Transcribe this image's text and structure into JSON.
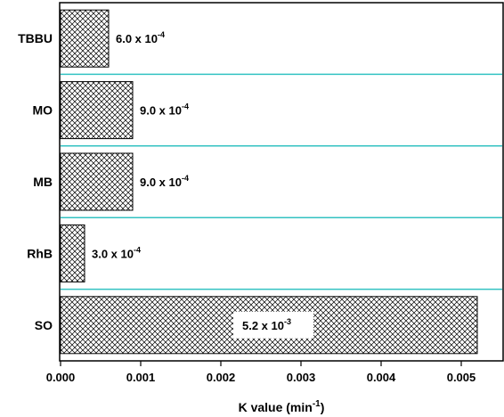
{
  "chart_data": {
    "type": "bar",
    "orientation": "horizontal",
    "categories": [
      "TBBU",
      "MO",
      "MB",
      "RhB",
      "SO"
    ],
    "values": [
      0.0006,
      0.0009,
      0.0009,
      0.0003,
      0.0052
    ],
    "data_labels": [
      {
        "mantissa": "6.0 x 10",
        "exponent": "-4"
      },
      {
        "mantissa": "9.0 x 10",
        "exponent": "-4"
      },
      {
        "mantissa": "9.0 x 10",
        "exponent": "-4"
      },
      {
        "mantissa": "3.0 x 10",
        "exponent": "-4"
      },
      {
        "mantissa": "5.2 x 10",
        "exponent": "-3"
      }
    ],
    "xlabel": {
      "text": "K value (min",
      "superscript": "-1",
      "suffix": ")"
    },
    "ylabel": "",
    "title": "",
    "xlim": [
      0,
      0.0056
    ],
    "xticks": [
      0,
      0.001,
      0.002,
      0.003,
      0.004,
      0.005
    ],
    "xtick_labels": [
      "0.000",
      "0.001",
      "0.002",
      "0.003",
      "0.004",
      "0.005"
    ],
    "bar_fill": "crosshatch",
    "separator_color": "#33c2c2",
    "grid": false,
    "legend": "none"
  }
}
